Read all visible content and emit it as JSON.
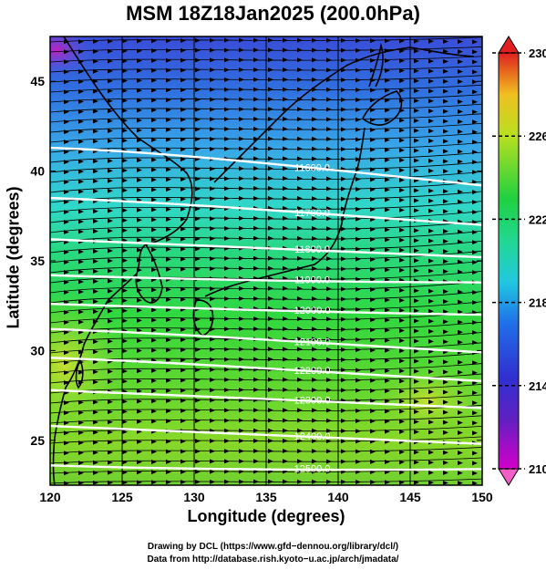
{
  "title": "MSM 18Z18Jan2025 (200.0hPa)",
  "xlabel": "Longitude (degrees)",
  "ylabel": "Latitude  (degrees)",
  "credits": [
    "Drawing by DCL (https://www.gfd−dennou.org/library/dcl/)",
    "Data from http://database.rish.kyoto−u.ac.jp/arch/jmadata/"
  ],
  "axes": {
    "x_ticks": [
      120,
      125,
      130,
      135,
      140,
      145,
      150
    ],
    "x_range": [
      120,
      150
    ],
    "y_ticks": [
      25,
      30,
      35,
      40,
      45
    ],
    "y_range": [
      22.5,
      47.5
    ]
  },
  "colorbar": {
    "range": [
      210,
      230
    ],
    "labels": [
      210,
      214,
      218,
      222,
      226,
      230
    ],
    "colors": [
      "#d400c8",
      "#3030d0",
      "#20c8e0",
      "#20d040",
      "#b8e020",
      "#e02020"
    ]
  },
  "contours": [
    {
      "label": "11600.0",
      "lat_w": 41.3,
      "lat_e": 39.2
    },
    {
      "label": "11700.0",
      "lat_w": 38.5,
      "lat_e": 37.0
    },
    {
      "label": "11800.0",
      "lat_w": 36.2,
      "lat_e": 35.2
    },
    {
      "label": "11900.0",
      "lat_w": 34.2,
      "lat_e": 33.8
    },
    {
      "label": "12000.0",
      "lat_w": 32.6,
      "lat_e": 32.0
    },
    {
      "label": "12100.0",
      "lat_w": 31.2,
      "lat_e": 29.9
    },
    {
      "label": "12200.0",
      "lat_w": 29.6,
      "lat_e": 28.3
    },
    {
      "label": "12300.0",
      "lat_w": 27.8,
      "lat_e": 26.8
    },
    {
      "label": "12400.0",
      "lat_w": 25.8,
      "lat_e": 24.8
    },
    {
      "label": "12500.0",
      "lat_w": 23.6,
      "lat_e": 23.4
    }
  ],
  "chart_data": {
    "type": "heatmap",
    "title": "MSM 18Z18Jan2025 (200.0hPa)",
    "xlabel": "Longitude (degrees)",
    "ylabel": "Latitude  (degrees)",
    "xlim": [
      120,
      150
    ],
    "ylim": [
      22.5,
      47.5
    ],
    "color_variable_range": [
      210,
      230
    ],
    "contour_levels": [
      11600,
      11700,
      11800,
      11900,
      12000,
      12100,
      12200,
      12300,
      12400,
      12500
    ],
    "grid": true
  }
}
